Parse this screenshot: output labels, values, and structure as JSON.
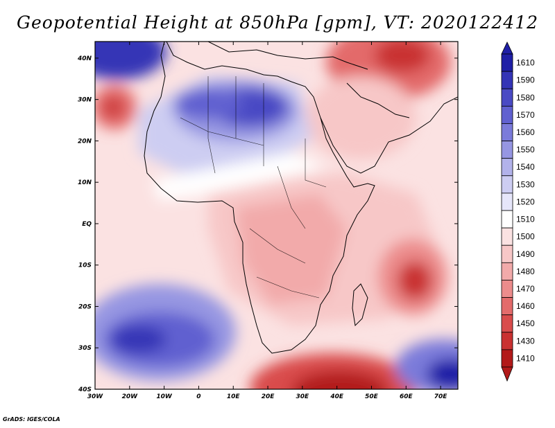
{
  "title": "Geopotential Height at 850hPa [gpm], VT: 2020122412",
  "credit": "GrADS: IGES/COLA",
  "map": {
    "lat_labels": [
      "40N",
      "30N",
      "20N",
      "10N",
      "EQ",
      "10S",
      "20S",
      "30S",
      "40S"
    ],
    "lon_labels": [
      "30W",
      "20W",
      "10W",
      "0",
      "10E",
      "20E",
      "30E",
      "40E",
      "50E",
      "60E",
      "70E"
    ],
    "lat_range": [
      -40,
      44
    ],
    "lon_range": [
      -30,
      75
    ]
  },
  "colorbar": {
    "levels": [
      "1610",
      "1590",
      "1580",
      "1570",
      "1560",
      "1550",
      "1540",
      "1530",
      "1520",
      "1510",
      "1500",
      "1490",
      "1480",
      "1470",
      "1460",
      "1450",
      "1430",
      "1410"
    ],
    "colors": [
      "#1f1fa6",
      "#3434b6",
      "#4a4ac4",
      "#6161d0",
      "#7b7bda",
      "#9696e2",
      "#b2b2ea",
      "#cdcdf2",
      "#e6e6fa",
      "#ffffff",
      "#fbe2e2",
      "#f7c7c7",
      "#f2aaaa",
      "#ec8c8c",
      "#e36b6b",
      "#d94c4c",
      "#c93131",
      "#b21a1a"
    ]
  }
}
